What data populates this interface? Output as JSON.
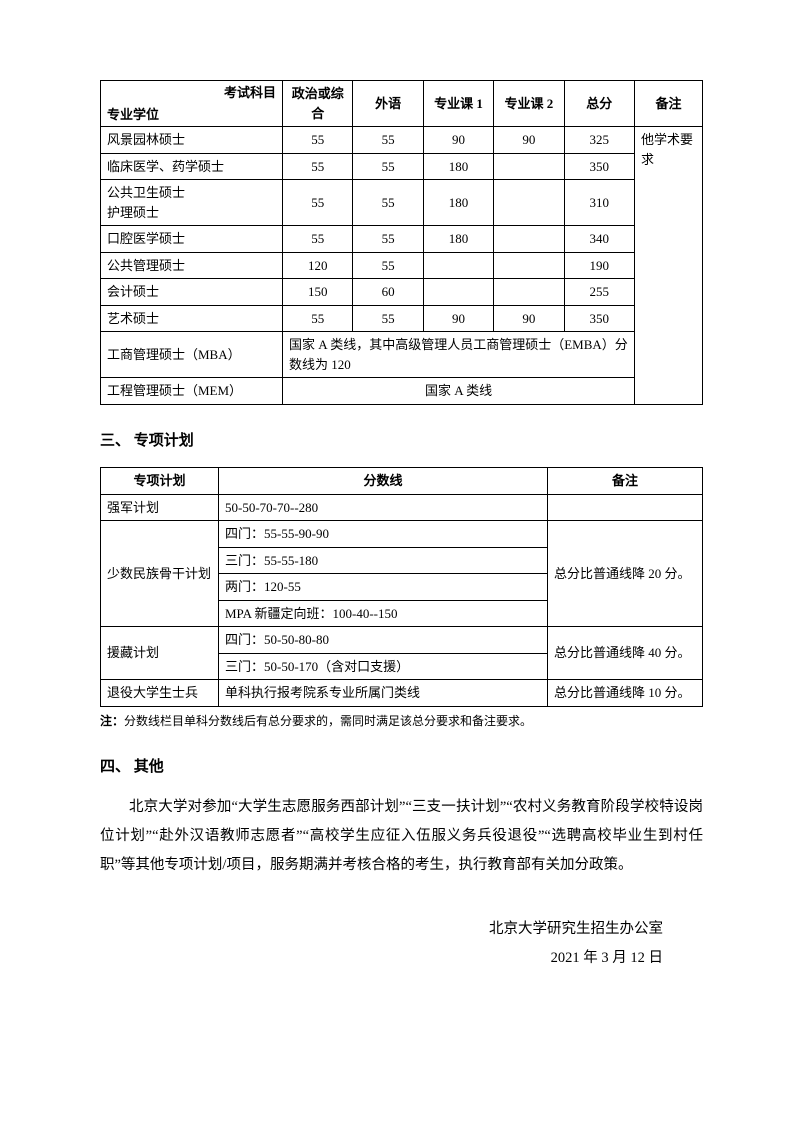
{
  "table1": {
    "header": {
      "subject": "考试科目",
      "degree": "专业学位",
      "politics": "政治或综合",
      "foreign": "外语",
      "major1": "专业课 1",
      "major2": "专业课 2",
      "total": "总分",
      "remark": "备注"
    },
    "rows": [
      {
        "degree": "风景园林硕士",
        "politics": "55",
        "foreign": "55",
        "major1": "90",
        "major2": "90",
        "total": "325"
      },
      {
        "degree": "临床医学、药学硕士",
        "politics": "55",
        "foreign": "55",
        "major1": "180",
        "major2": "",
        "total": "350"
      },
      {
        "degree": "公共卫生硕士\n护理硕士",
        "politics": "55",
        "foreign": "55",
        "major1": "180",
        "major2": "",
        "total": "310"
      },
      {
        "degree": "口腔医学硕士",
        "politics": "55",
        "foreign": "55",
        "major1": "180",
        "major2": "",
        "total": "340"
      },
      {
        "degree": "公共管理硕士",
        "politics": "120",
        "foreign": "55",
        "major1": "",
        "major2": "",
        "total": "190"
      },
      {
        "degree": "会计硕士",
        "politics": "150",
        "foreign": "60",
        "major1": "",
        "major2": "",
        "total": "255"
      },
      {
        "degree": "艺术硕士",
        "politics": "55",
        "foreign": "55",
        "major1": "90",
        "major2": "90",
        "total": "350"
      }
    ],
    "mba": {
      "degree": "工商管理硕士（MBA）",
      "note": "国家 A 类线，其中高级管理人员工商管理硕士（EMBA）分数线为 120"
    },
    "mem": {
      "degree": "工程管理硕士（MEM）",
      "note": "国家 A 类线"
    },
    "remark_text": "他学术要求"
  },
  "section3_heading": "三、 专项计划",
  "table2": {
    "header": {
      "plan": "专项计划",
      "score": "分数线",
      "remark": "备注"
    },
    "r1": {
      "plan": "强军计划",
      "score": "50-50-70-70--280",
      "remark": ""
    },
    "r2": {
      "plan": "少数民族骨干计划",
      "scores": [
        "四门：55-55-90-90",
        "三门：55-55-180",
        "两门：120-55",
        "MPA 新疆定向班：100-40--150"
      ],
      "remark": "总分比普通线降 20 分。"
    },
    "r3": {
      "plan": "援藏计划",
      "scores": [
        "四门：50-50-80-80",
        "三门：50-50-170（含对口支援）"
      ],
      "remark": "总分比普通线降 40 分。"
    },
    "r4": {
      "plan": "退役大学生士兵",
      "score": "单科执行报考院系专业所属门类线",
      "remark": "总分比普通线降 10 分。"
    }
  },
  "note_label": "注：",
  "note_text": "分数线栏目单科分数线后有总分要求的，需同时满足该总分要求和备注要求。",
  "section4_heading": "四、 其他",
  "paragraph": "北京大学对参加“大学生志愿服务西部计划”“三支一扶计划”“农村义务教育阶段学校特设岗位计划”“赴外汉语教师志愿者”“高校学生应征入伍服义务兵役退役”“选聘高校毕业生到村任职”等其他专项计划/项目，服务期满并考核合格的考生，执行教育部有关加分政策。",
  "signature_org": "北京大学研究生招生办公室",
  "signature_date": "2021 年 3 月 12 日"
}
